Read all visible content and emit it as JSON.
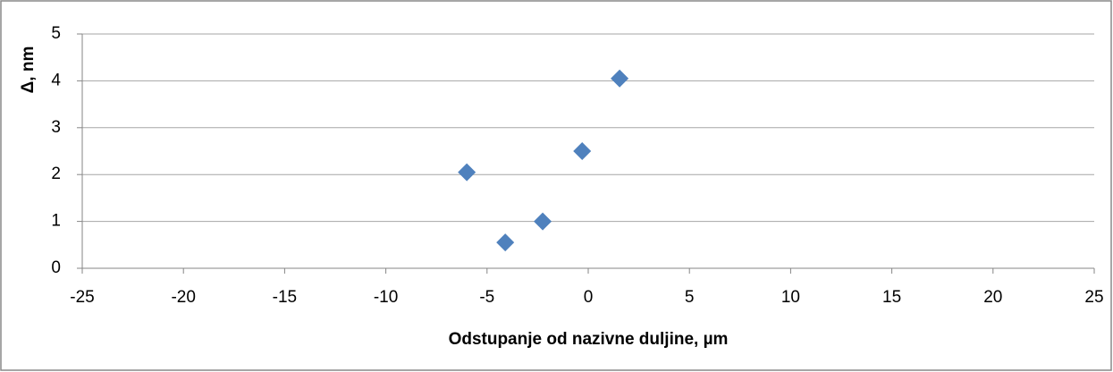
{
  "chart_data": {
    "type": "scatter",
    "x_label": "Odstupanje od nazivne duljine, µm",
    "y_label": "Δ, nm",
    "series": [
      {
        "color": "#4f81bd",
        "x": [
          -6.0,
          -4.1,
          -2.25,
          -0.3,
          1.55
        ],
        "values": [
          2.05,
          0.55,
          1.0,
          2.5,
          4.05
        ]
      }
    ],
    "xlim": [
      -25,
      25
    ],
    "xticks": [
      -25,
      -20,
      -15,
      -10,
      -5,
      0,
      5,
      10,
      15,
      20,
      25
    ],
    "ylim": [
      0,
      5
    ],
    "yticks": [
      0,
      1,
      2,
      3,
      4,
      5
    ],
    "grid": true
  }
}
